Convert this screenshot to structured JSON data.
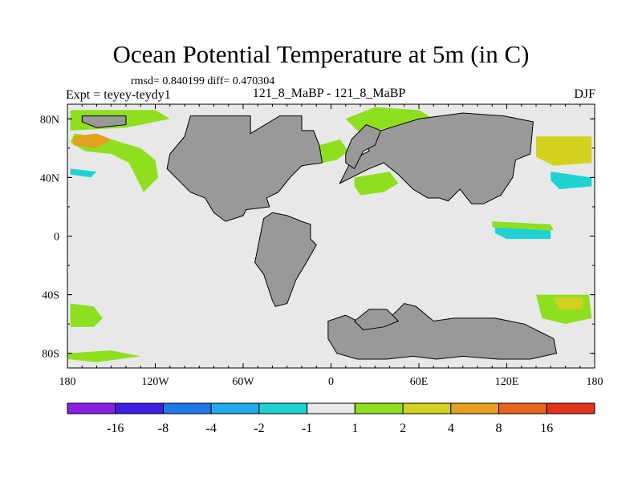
{
  "header": {
    "title": "Ocean Potential Temperature at 5m (in C)",
    "stats": "rmsd= 0.840199 diff= 0.470304",
    "experiment": "Expt = teyey-teydy1",
    "cases": "121_8_MaBP - 121_8_MaBP",
    "season": "DJF"
  },
  "chart_data": {
    "type": "heatmap",
    "title": "Ocean Potential Temperature at 5m (in C)",
    "xlabel": "",
    "ylabel": "",
    "x_range": [
      -180,
      180
    ],
    "y_range": [
      -90,
      90
    ],
    "x_ticks": [
      {
        "value": -180,
        "label": "180"
      },
      {
        "value": -120,
        "label": "120W"
      },
      {
        "value": -60,
        "label": "60W"
      },
      {
        "value": 0,
        "label": "0"
      },
      {
        "value": 60,
        "label": "60E"
      },
      {
        "value": 120,
        "label": "120E"
      },
      {
        "value": 180,
        "label": "180"
      }
    ],
    "y_ticks": [
      {
        "value": 80,
        "label": "80N"
      },
      {
        "value": 40,
        "label": "40N"
      },
      {
        "value": 0,
        "label": "0"
      },
      {
        "value": -40,
        "label": "40S"
      },
      {
        "value": -80,
        "label": "80S"
      }
    ],
    "colorbar": {
      "labels": [
        "-16",
        "-8",
        "-4",
        "-2",
        "-1",
        "1",
        "2",
        "4",
        "8",
        "16"
      ],
      "colors": [
        "#8a1ee6",
        "#3c1ee6",
        "#1e78e6",
        "#1eaae6",
        "#1ed2d2",
        "#e8e8e8",
        "#8ee01e",
        "#d2d21e",
        "#e6a01e",
        "#e6641e",
        "#e6321e"
      ]
    },
    "land_color": "#999999",
    "background_color": "#e8e8e8",
    "land": [
      {
        "name": "north-america",
        "points": [
          [
            -96,
            82
          ],
          [
            -55,
            82
          ],
          [
            -55,
            70
          ],
          [
            -35,
            82
          ],
          [
            -20,
            82
          ],
          [
            -20,
            72
          ],
          [
            -12,
            72
          ],
          [
            -8,
            62
          ],
          [
            -6,
            50
          ],
          [
            -20,
            48
          ],
          [
            -28,
            40
          ],
          [
            -36,
            30
          ],
          [
            -44,
            26
          ],
          [
            -42,
            20
          ],
          [
            -58,
            18
          ],
          [
            -60,
            14
          ],
          [
            -72,
            10
          ],
          [
            -80,
            16
          ],
          [
            -86,
            26
          ],
          [
            -96,
            30
          ],
          [
            -102,
            36
          ],
          [
            -112,
            46
          ],
          [
            -110,
            56
          ],
          [
            -100,
            68
          ],
          [
            -96,
            82
          ]
        ]
      },
      {
        "name": "south-america",
        "points": [
          [
            -46,
            12
          ],
          [
            -40,
            16
          ],
          [
            -30,
            14
          ],
          [
            -20,
            10
          ],
          [
            -14,
            8
          ],
          [
            -14,
            -2
          ],
          [
            -10,
            -6
          ],
          [
            -18,
            -20
          ],
          [
            -24,
            -30
          ],
          [
            -30,
            -46
          ],
          [
            -38,
            -48
          ],
          [
            -40,
            -44
          ],
          [
            -46,
            -26
          ],
          [
            -52,
            -18
          ],
          [
            -50,
            -8
          ],
          [
            -46,
            12
          ]
        ]
      },
      {
        "name": "eurasia",
        "points": [
          [
            6,
            36
          ],
          [
            14,
            52
          ],
          [
            26,
            58
          ],
          [
            24,
            64
          ],
          [
            34,
            72
          ],
          [
            60,
            80
          ],
          [
            90,
            84
          ],
          [
            118,
            82
          ],
          [
            138,
            78
          ],
          [
            136,
            56
          ],
          [
            126,
            52
          ],
          [
            124,
            40
          ],
          [
            116,
            28
          ],
          [
            104,
            22
          ],
          [
            96,
            22
          ],
          [
            88,
            32
          ],
          [
            80,
            24
          ],
          [
            74,
            26
          ],
          [
            66,
            26
          ],
          [
            56,
            32
          ],
          [
            46,
            42
          ],
          [
            36,
            50
          ],
          [
            26,
            46
          ],
          [
            18,
            42
          ],
          [
            6,
            36
          ]
        ]
      },
      {
        "name": "europe-west",
        "points": [
          [
            10,
            50
          ],
          [
            16,
            46
          ],
          [
            22,
            58
          ],
          [
            30,
            62
          ],
          [
            34,
            72
          ],
          [
            24,
            76
          ],
          [
            14,
            66
          ],
          [
            10,
            56
          ],
          [
            10,
            50
          ]
        ]
      },
      {
        "name": "antarctica",
        "points": [
          [
            -2,
            -58
          ],
          [
            10,
            -54
          ],
          [
            18,
            -58
          ],
          [
            28,
            -52
          ],
          [
            40,
            -56
          ],
          [
            50,
            -46
          ],
          [
            58,
            -48
          ],
          [
            70,
            -58
          ],
          [
            84,
            -56
          ],
          [
            112,
            -56
          ],
          [
            132,
            -60
          ],
          [
            144,
            -66
          ],
          [
            152,
            -70
          ],
          [
            154,
            -80
          ],
          [
            136,
            -84
          ],
          [
            114,
            -84
          ],
          [
            90,
            -82
          ],
          [
            72,
            -84
          ],
          [
            56,
            -82
          ],
          [
            38,
            -84
          ],
          [
            18,
            -84
          ],
          [
            4,
            -80
          ],
          [
            -2,
            -70
          ],
          [
            -2,
            -58
          ]
        ]
      },
      {
        "name": "antarctic-peninsula",
        "points": [
          [
            16,
            -58
          ],
          [
            26,
            -50
          ],
          [
            38,
            -50
          ],
          [
            46,
            -58
          ],
          [
            36,
            -62
          ],
          [
            22,
            -64
          ],
          [
            16,
            -58
          ]
        ]
      },
      {
        "name": "arctic-island",
        "points": [
          [
            -170,
            82
          ],
          [
            -140,
            82
          ],
          [
            -140,
            76
          ],
          [
            -160,
            74
          ],
          [
            -170,
            78
          ],
          [
            -170,
            82
          ]
        ]
      }
    ],
    "anomaly_patches": [
      {
        "name": "north-pacific-warm",
        "level": "1..2",
        "points": [
          [
            -175,
            70
          ],
          [
            -150,
            66
          ],
          [
            -130,
            60
          ],
          [
            -120,
            52
          ],
          [
            -118,
            40
          ],
          [
            -128,
            30
          ],
          [
            -132,
            38
          ],
          [
            -138,
            50
          ],
          [
            -150,
            56
          ],
          [
            -168,
            58
          ],
          [
            -178,
            64
          ],
          [
            -175,
            70
          ]
        ]
      },
      {
        "name": "arctic-warm",
        "level": "1..2",
        "points": [
          [
            -178,
            86
          ],
          [
            -120,
            86
          ],
          [
            -110,
            80
          ],
          [
            -140,
            74
          ],
          [
            -178,
            72
          ],
          [
            -178,
            86
          ]
        ]
      },
      {
        "name": "bering-orange",
        "level": "4..8",
        "points": [
          [
            -176,
            68
          ],
          [
            -160,
            70
          ],
          [
            -150,
            66
          ],
          [
            -160,
            60
          ],
          [
            -176,
            62
          ],
          [
            -176,
            68
          ]
        ]
      },
      {
        "name": "north-atlantic-warm",
        "level": "1..2",
        "points": [
          [
            10,
            80
          ],
          [
            30,
            88
          ],
          [
            60,
            86
          ],
          [
            70,
            80
          ],
          [
            40,
            74
          ],
          [
            20,
            70
          ],
          [
            10,
            80
          ]
        ]
      },
      {
        "name": "greenland-sea-warm",
        "level": "1..2",
        "points": [
          [
            -8,
            62
          ],
          [
            6,
            66
          ],
          [
            12,
            58
          ],
          [
            4,
            52
          ],
          [
            -6,
            50
          ],
          [
            -8,
            62
          ]
        ]
      },
      {
        "name": "pacific-east-warm",
        "level": "2..4",
        "points": [
          [
            140,
            68
          ],
          [
            178,
            68
          ],
          [
            178,
            50
          ],
          [
            152,
            48
          ],
          [
            140,
            54
          ],
          [
            140,
            68
          ]
        ]
      },
      {
        "name": "kuroshio-cold",
        "level": "-2..-1",
        "points": [
          [
            150,
            44
          ],
          [
            178,
            40
          ],
          [
            178,
            34
          ],
          [
            156,
            32
          ],
          [
            150,
            38
          ],
          [
            150,
            44
          ]
        ]
      },
      {
        "name": "nw-pacific-cold",
        "level": "-2..-1",
        "points": [
          [
            -178,
            46
          ],
          [
            -160,
            44
          ],
          [
            -164,
            40
          ],
          [
            -178,
            42
          ],
          [
            -178,
            46
          ]
        ]
      },
      {
        "name": "equatorial-pacific-cold",
        "level": "-2..-1",
        "points": [
          [
            112,
            6
          ],
          [
            150,
            4
          ],
          [
            150,
            -2
          ],
          [
            120,
            -2
          ],
          [
            112,
            2
          ],
          [
            112,
            6
          ]
        ]
      },
      {
        "name": "equatorial-pacific-warm",
        "level": "1..2",
        "points": [
          [
            110,
            10
          ],
          [
            150,
            8
          ],
          [
            152,
            4
          ],
          [
            110,
            6
          ],
          [
            110,
            10
          ]
        ]
      },
      {
        "name": "mediterranean-cold",
        "level": "-2..-1",
        "points": [
          [
            20,
            34
          ],
          [
            30,
            36
          ],
          [
            32,
            30
          ],
          [
            22,
            28
          ],
          [
            20,
            34
          ]
        ]
      },
      {
        "name": "mediterranean-warm",
        "level": "1..2",
        "points": [
          [
            16,
            40
          ],
          [
            40,
            44
          ],
          [
            46,
            36
          ],
          [
            36,
            30
          ],
          [
            20,
            28
          ],
          [
            16,
            34
          ],
          [
            16,
            40
          ]
        ]
      },
      {
        "name": "southern-ocean-warm-w",
        "level": "1..2",
        "points": [
          [
            -178,
            -46
          ],
          [
            -162,
            -48
          ],
          [
            -156,
            -56
          ],
          [
            -162,
            -62
          ],
          [
            -178,
            -62
          ],
          [
            -178,
            -46
          ]
        ]
      },
      {
        "name": "southern-ocean-warm-e",
        "level": "1..2",
        "points": [
          [
            140,
            -40
          ],
          [
            176,
            -40
          ],
          [
            178,
            -56
          ],
          [
            160,
            -60
          ],
          [
            144,
            -56
          ],
          [
            140,
            -40
          ]
        ]
      },
      {
        "name": "southern-ocean-orange",
        "level": "2..4",
        "points": [
          [
            152,
            -42
          ],
          [
            172,
            -42
          ],
          [
            172,
            -50
          ],
          [
            156,
            -50
          ],
          [
            152,
            -42
          ]
        ]
      },
      {
        "name": "antarctic-coast-warm",
        "level": "1..2",
        "points": [
          [
            -180,
            -80
          ],
          [
            -150,
            -78
          ],
          [
            -130,
            -82
          ],
          [
            -160,
            -86
          ],
          [
            -180,
            -84
          ],
          [
            -180,
            -80
          ]
        ]
      }
    ]
  }
}
